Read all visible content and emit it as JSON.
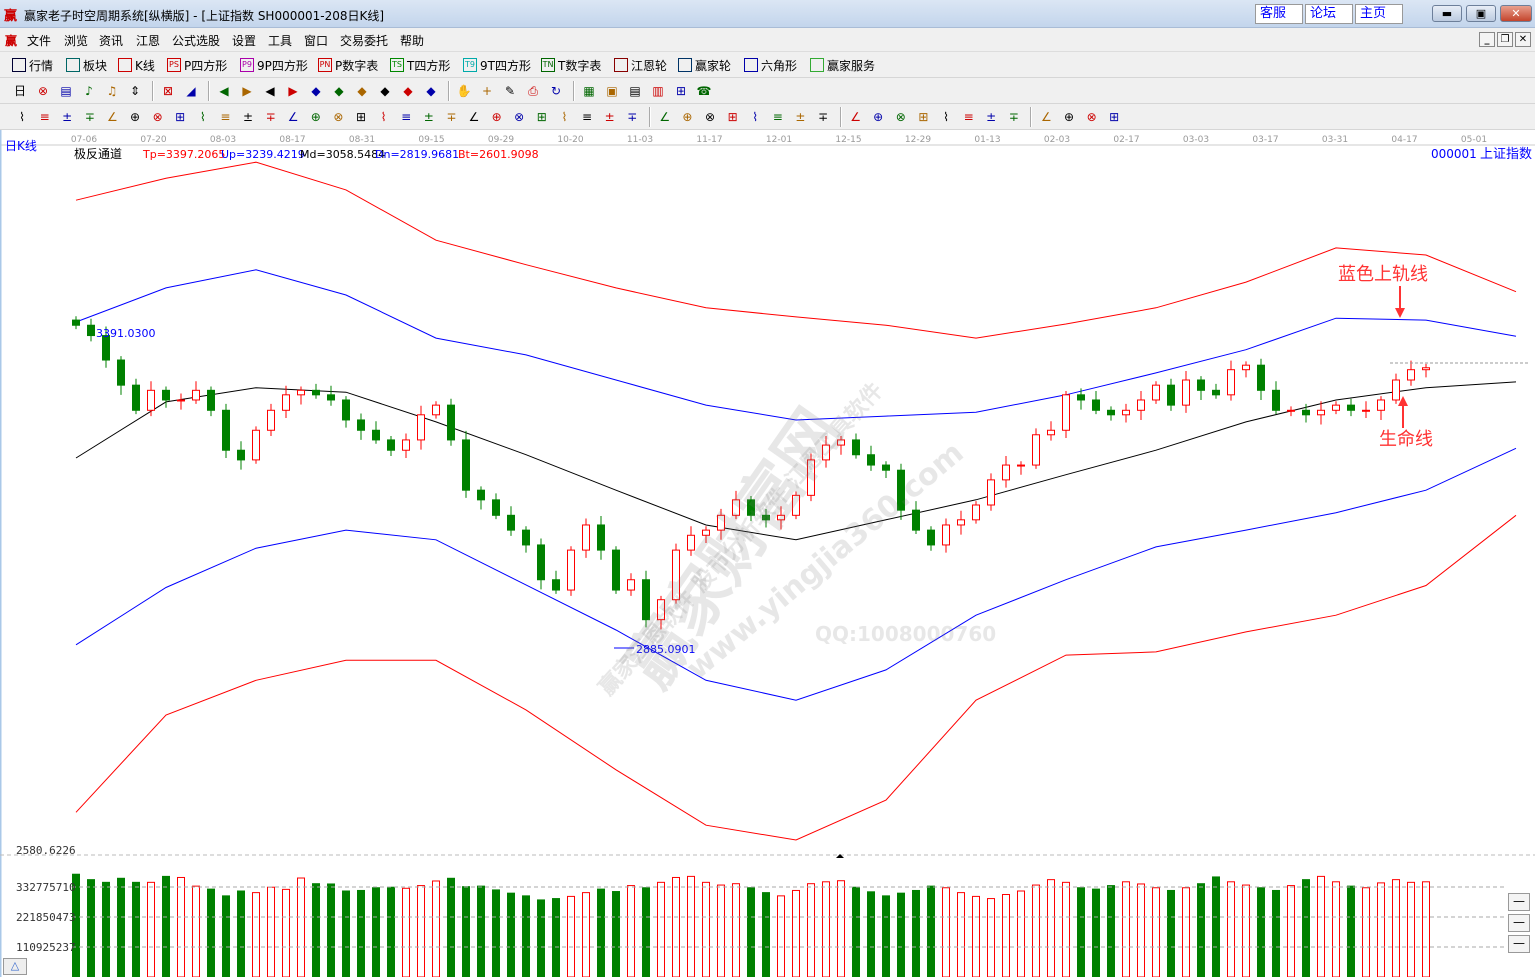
{
  "window": {
    "title": "赢家老子时空周期系统[纵横版] - [上证指数  SH000001-208日K线]",
    "logo": "赢",
    "links": [
      "客服",
      "论坛",
      "主页"
    ]
  },
  "menu": [
    "文件",
    "浏览",
    "资讯",
    "江恩",
    "公式选股",
    "设置",
    "工具",
    "窗口",
    "交易委托",
    "帮助"
  ],
  "toolbar1": [
    {
      "label": "行情",
      "icon": "quote-table-icon",
      "color": "#003"
    },
    {
      "label": "板块",
      "icon": "sector-grid-icon",
      "color": "#066"
    },
    {
      "label": "K线",
      "icon": "candlestick-icon",
      "color": "#c00"
    },
    {
      "label": "P四方形",
      "icon": "ps-icon",
      "tag": "PS",
      "color": "#c00"
    },
    {
      "label": "9P四方形",
      "icon": "p9-icon",
      "tag": "P9",
      "color": "#a0a"
    },
    {
      "label": "P数字表",
      "icon": "pn-icon",
      "tag": "PN",
      "color": "#c00"
    },
    {
      "label": "T四方形",
      "icon": "ts-icon",
      "tag": "TS",
      "color": "#080"
    },
    {
      "label": "9T四方形",
      "icon": "t9-icon",
      "tag": "T9",
      "color": "#0aa"
    },
    {
      "label": "T数字表",
      "icon": "tn-icon",
      "tag": "TN",
      "color": "#060"
    },
    {
      "label": "江恩轮",
      "icon": "gann-wheel-icon",
      "color": "#800"
    },
    {
      "label": "赢家轮",
      "icon": "winner-wheel-icon",
      "color": "#036"
    },
    {
      "label": "六角形",
      "icon": "hexagon-icon",
      "color": "#00a"
    },
    {
      "label": "赢家服务",
      "icon": "dollar-icon",
      "color": "#3a3"
    }
  ],
  "toolbar2_icons": [
    "period-day-icon",
    "zoom-icon",
    "list-icon",
    "chart-3-icon",
    "chart-9-icon",
    "indicator-icon",
    "red-icon",
    "color-icon",
    "first-icon",
    "last-icon",
    "prev-icon",
    "next-icon",
    "arrow-left-icon",
    "arrow-right-icon",
    "arrow-both-icon",
    "arrow-cross-icon",
    "arrow-expand-icon",
    "arrow-shrink-icon",
    "hand-icon",
    "crosshair-icon",
    "pen-icon",
    "print-icon",
    "refresh-icon",
    "calendar-icon",
    "calculator-icon",
    "notes-icon",
    "save-icon",
    "network-icon",
    "phone-icon"
  ],
  "toolbar3_icons": [
    "draw-pen-icon",
    "parallel-icon",
    "gold-line-icon",
    "gold-line2-icon",
    "fib-icon",
    "spiral-icon",
    "brush-icon",
    "circle-icon",
    "lines-icon",
    "n2-icon",
    "arrow-up-icon",
    "gann-fan-icon",
    "gann-grid-icon",
    "gann-box-icon",
    "trend-icon",
    "hold-icon",
    "win-icon",
    "grid-icon",
    "measure-icon",
    "frame-icon",
    "fan-icon",
    "square-icon",
    "square2-icon",
    "angle-icon",
    "wave-icon",
    "grid2-icon",
    "grid3-icon",
    "channel-icon",
    "table-icon",
    "percent-line-icon",
    "percent-icon",
    "percent-red-icon",
    "gold-circle-icon",
    "gold-bar-icon",
    "arrow-mark-icon",
    "red-line-icon",
    "gold-icon",
    "level-icon",
    "f-level-icon",
    "gold-level-icon",
    "chan-icon",
    "pressure-icon",
    "support-icon",
    "level2-icon",
    "window-grid-icon",
    "chart-line-icon",
    "yinyang-icon",
    "infinity-icon"
  ],
  "chart": {
    "period_label": "日K线",
    "indicator_name": "极反通道",
    "params": [
      {
        "text": "Tp=3397.2065",
        "color": "#ff0000"
      },
      {
        "text": "Up=3239.4219",
        "color": "#0000ff"
      },
      {
        "text": "Md=3058.5484",
        "color": "#000000"
      },
      {
        "text": "Dn=2819.9681",
        "color": "#0000ff"
      },
      {
        "text": "Bt=2601.9098",
        "color": "#ff0000"
      }
    ],
    "code": "000001",
    "name": "上证指数",
    "dates": [
      "07-06",
      "07-20",
      "08-03",
      "08-17",
      "08-31",
      "09-15",
      "09-29",
      "10-20",
      "11-03",
      "11-17",
      "12-01",
      "12-15",
      "12-29",
      "01-13",
      "02-03",
      "02-17",
      "03-03",
      "03-17",
      "03-31",
      "04-17",
      "05-01"
    ],
    "high_label": "3391.0300",
    "low_label": "2885.0901",
    "price_axis_bottom": "2580.6226",
    "volume_ticks": [
      "332775710",
      "221850473",
      "110925237"
    ],
    "annotations": {
      "upper": "蓝色上轨线",
      "life": "生命线"
    },
    "colors": {
      "up": "#ff0000",
      "down": "#008000",
      "top_band": "#ff0000",
      "upper_band": "#0000ff",
      "mid": "#000000",
      "lower_band": "#0000ff",
      "bottom_band": "#ff0000"
    },
    "watermark": [
      "赢家财富网",
      "www.yingjia360.com",
      "赢家江恩软件  股市分析软件  江恩工具软件",
      "QQ:1008000760"
    ]
  },
  "chart_data": {
    "type": "candlestick",
    "closes": [
      3386,
      3370,
      3332,
      3293,
      3254,
      3285,
      3270,
      3270,
      3285,
      3254,
      3192,
      3177,
      3223,
      3254,
      3278,
      3285,
      3278,
      3270,
      3239,
      3223,
      3208,
      3192,
      3208,
      3247,
      3262,
      3208,
      3130,
      3115,
      3091,
      3068,
      3045,
      2991,
      2975,
      3037,
      3076,
      3037,
      2975,
      2991,
      2929,
      2960,
      3037,
      3060,
      3068,
      3091,
      3115,
      3091,
      3084,
      3091,
      3122,
      3177,
      3200,
      3208,
      3185,
      3169,
      3161,
      3099,
      3068,
      3045,
      3076,
      3084,
      3107,
      3146,
      3169,
      3169,
      3216,
      3223,
      3278,
      3270,
      3254,
      3247,
      3254,
      3270,
      3293,
      3262,
      3301,
      3285,
      3278,
      3317,
      3324,
      3285,
      3254,
      3254,
      3247,
      3254,
      3262,
      3254,
      3254,
      3270,
      3301,
      3317,
      3320
    ],
    "volumes": [
      380,
      360,
      350,
      365,
      350,
      350,
      372,
      368,
      336,
      325,
      300,
      318,
      312,
      332,
      324,
      366,
      345,
      344,
      318,
      320,
      330,
      332,
      328,
      338,
      355,
      365,
      334,
      336,
      322,
      310,
      300,
      285,
      290,
      298,
      312,
      325,
      316,
      338,
      330,
      350,
      368,
      372,
      350,
      340,
      345,
      330,
      312,
      300,
      320,
      345,
      352,
      356,
      332,
      315,
      300,
      310,
      320,
      336,
      330,
      312,
      298,
      290,
      305,
      318,
      340,
      360,
      350,
      330,
      325,
      338,
      352,
      344,
      330,
      320,
      330,
      345,
      370,
      352,
      340,
      330,
      320,
      338,
      360,
      372,
      352,
      336,
      330,
      348,
      360,
      350,
      352
    ],
    "volume_unit": "1e6",
    "bands_every_n_bars": 6,
    "bands": {
      "Tp": [
        3580,
        3614,
        3639,
        3596,
        3518,
        3480,
        3444,
        3413,
        3399,
        3386,
        3366,
        3388,
        3413,
        3453,
        3506,
        3495,
        3438
      ],
      "Up": [
        3391,
        3444,
        3472,
        3433,
        3366,
        3340,
        3301,
        3262,
        3239,
        3245,
        3251,
        3278,
        3312,
        3348,
        3397,
        3394,
        3369
      ],
      "Md": [
        3180,
        3267,
        3289,
        3282,
        3236,
        3185,
        3130,
        3076,
        3053,
        3084,
        3115,
        3154,
        3192,
        3236,
        3270,
        3289,
        3298
      ],
      "Dn": [
        2890,
        2979,
        3040,
        3068,
        3053,
        2983,
        2913,
        2835,
        2804,
        2851,
        2936,
        2991,
        3042,
        3068,
        3095,
        3130,
        3195
      ],
      "Bt": [
        2630,
        2781,
        2835,
        2866,
        2866,
        2789,
        2696,
        2610,
        2587,
        2649,
        2804,
        2874,
        2879,
        2910,
        2936,
        2982,
        3091
      ]
    },
    "price_range": [
      2580.6226,
      3640
    ]
  }
}
